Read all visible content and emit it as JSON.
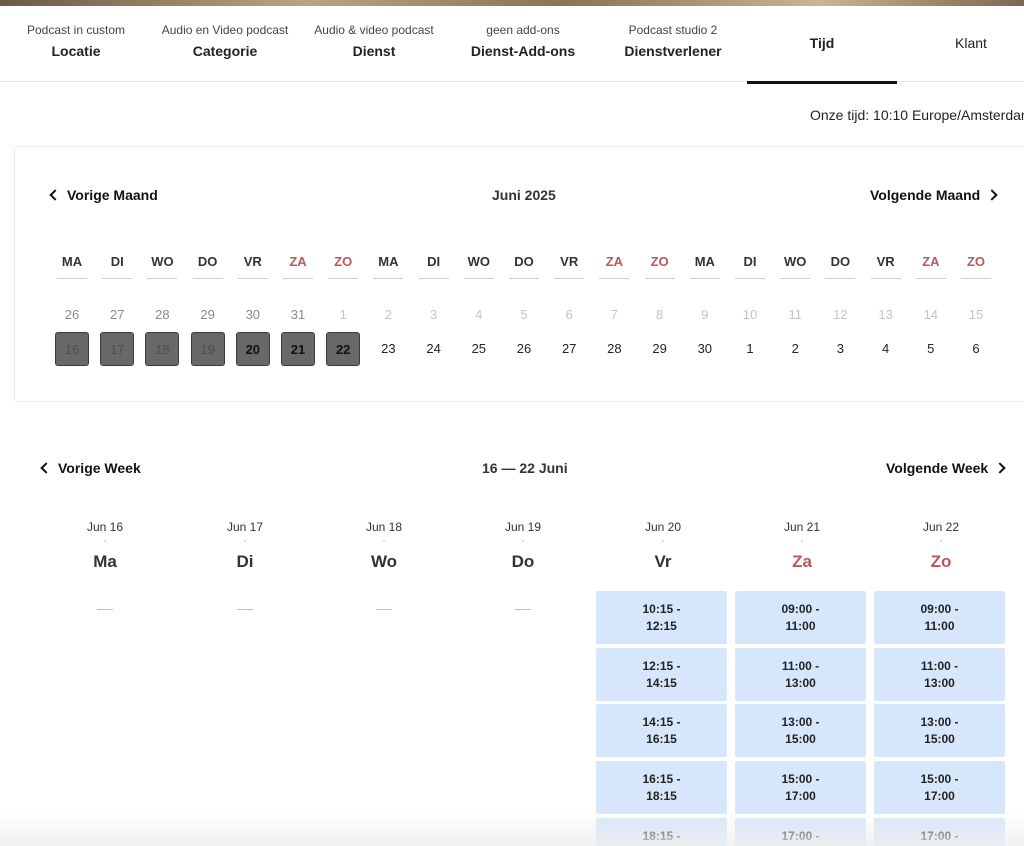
{
  "steps": [
    {
      "sub": "Podcast in custom",
      "main": "Locatie"
    },
    {
      "sub": "Audio en Video podcast",
      "main": "Categorie"
    },
    {
      "sub": "Audio & video podcast",
      "main": "Dienst"
    },
    {
      "sub": "geen add-ons",
      "main": "Dienst-Add-ons"
    },
    {
      "sub": "Podcast studio 2",
      "main": "Dienstverlener"
    },
    {
      "label": "Tijd"
    },
    {
      "label": "Klant"
    }
  ],
  "our_time": "Onze tijd: 10:10 Europe/Amsterdam",
  "month": {
    "prev_label": "Vorige Maand",
    "title": "Juni 2025",
    "next_label": "Volgende Maand",
    "day_headers": [
      "MA",
      "DI",
      "WO",
      "DO",
      "VR",
      "ZA",
      "ZO",
      "MA",
      "DI",
      "WO",
      "DO",
      "VR",
      "ZA",
      "ZO",
      "MA",
      "DI",
      "WO",
      "DO",
      "VR",
      "ZA",
      "ZO"
    ],
    "prev_row": [
      "26",
      "27",
      "28",
      "29",
      "30",
      "31",
      "1",
      "2",
      "3",
      "4",
      "5",
      "6",
      "7",
      "8",
      "9",
      "10",
      "11",
      "12",
      "13",
      "14",
      "15"
    ],
    "current_row": [
      "16",
      "17",
      "18",
      "19",
      "20",
      "21",
      "22",
      "23",
      "24",
      "25",
      "26",
      "27",
      "28",
      "29",
      "30",
      "1",
      "2",
      "3",
      "4",
      "5",
      "6"
    ]
  },
  "week": {
    "prev_label": "Vorige Week",
    "title": "16 — 22 Juni",
    "next_label": "Volgende Week",
    "days": [
      {
        "date": "Jun 16",
        "name": "Ma",
        "slots": []
      },
      {
        "date": "Jun 17",
        "name": "Di",
        "slots": []
      },
      {
        "date": "Jun 18",
        "name": "Wo",
        "slots": []
      },
      {
        "date": "Jun 19",
        "name": "Do",
        "slots": []
      },
      {
        "date": "Jun 20",
        "name": "Vr",
        "slots": [
          [
            "10:15 -",
            "12:15"
          ],
          [
            "12:15 -",
            "14:15"
          ],
          [
            "14:15 -",
            "16:15"
          ],
          [
            "16:15 -",
            "18:15"
          ],
          [
            "18:15 -",
            ""
          ]
        ]
      },
      {
        "date": "Jun 21",
        "name": "Za",
        "slots": [
          [
            "09:00 -",
            "11:00"
          ],
          [
            "11:00 -",
            "13:00"
          ],
          [
            "13:00 -",
            "15:00"
          ],
          [
            "15:00 -",
            "17:00"
          ],
          [
            "17:00 -",
            ""
          ]
        ]
      },
      {
        "date": "Jun 22",
        "name": "Zo",
        "slots": [
          [
            "09:00 -",
            "11:00"
          ],
          [
            "11:00 -",
            "13:00"
          ],
          [
            "13:00 -",
            "15:00"
          ],
          [
            "15:00 -",
            "17:00"
          ],
          [
            "17:00 -",
            ""
          ]
        ]
      }
    ]
  }
}
